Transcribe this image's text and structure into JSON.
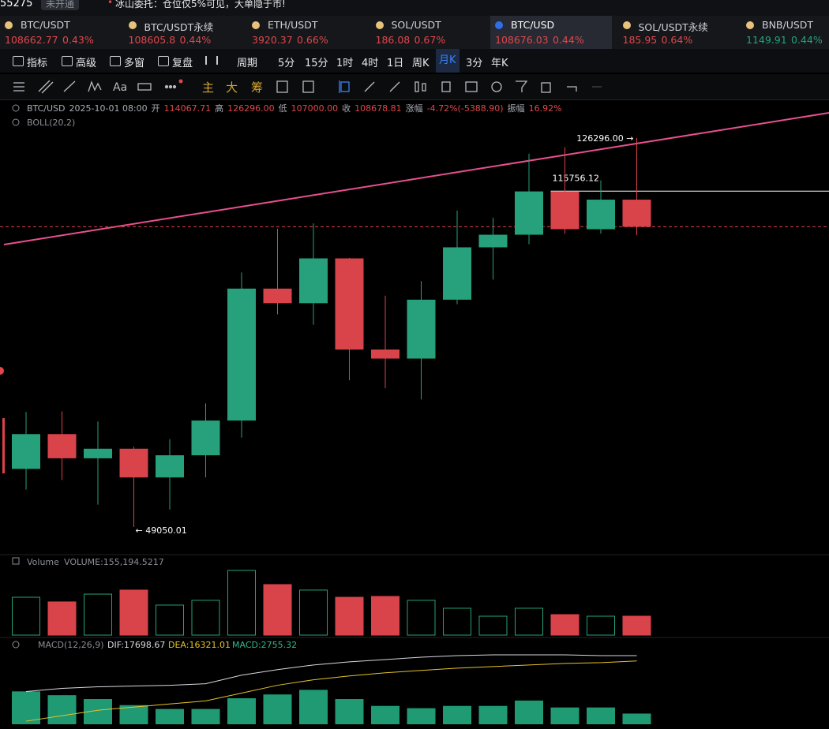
{
  "topbar": {
    "account": "55275",
    "badge": "未开通",
    "notice": "冰山委托：仓位仅5%可见，大单隐于市!"
  },
  "tickers": [
    {
      "symbol": "BTC/USDT",
      "price": "108662.77",
      "change": "0.43%",
      "color": "#e0474b",
      "active": false
    },
    {
      "symbol": "BTC/USDT永续",
      "price": "108605.8",
      "change": "0.44%",
      "color": "#e0474b",
      "active": false
    },
    {
      "symbol": "ETH/USDT",
      "price": "3920.37",
      "change": "0.66%",
      "color": "#e0474b",
      "active": false
    },
    {
      "symbol": "SOL/USDT",
      "price": "186.08",
      "change": "0.67%",
      "color": "#e0474b",
      "active": false
    },
    {
      "symbol": "BTC/USD",
      "price": "108676.03",
      "change": "0.44%",
      "color": "#e0474b",
      "active": true
    },
    {
      "symbol": "SOL/USDT永续",
      "price": "185.95",
      "change": "0.64%",
      "color": "#e0474b",
      "active": false
    },
    {
      "symbol": "BNB/USDT",
      "price": "1149.91",
      "change": "0.44%",
      "color": "#26a17b",
      "active": false
    }
  ],
  "toolbar": {
    "items": [
      "指标",
      "高级",
      "多窗",
      "复盘"
    ],
    "period": "周期",
    "intervals": [
      "5分",
      "15分",
      "1时",
      "4时",
      "1日",
      "周K",
      "月K",
      "3分",
      "年K"
    ],
    "active_interval": 6
  },
  "draw_toolbar": {
    "labels": [
      "主",
      "大",
      "筹"
    ]
  },
  "chart": {
    "info": [
      {
        "text": "BTC/USD",
        "color": "#a9abb3"
      },
      {
        "text": "2025-10-01 08:00",
        "color": "#a9abb3"
      },
      {
        "text": "开",
        "color": "#a9abb3"
      },
      {
        "text": "114067.71",
        "color": "#e0474b"
      },
      {
        "text": "高",
        "color": "#a9abb3"
      },
      {
        "text": "126296.00",
        "color": "#e0474b"
      },
      {
        "text": "低",
        "color": "#a9abb3"
      },
      {
        "text": "107000.00",
        "color": "#e0474b"
      },
      {
        "text": "收",
        "color": "#a9abb3"
      },
      {
        "text": "108678.81",
        "color": "#e0474b"
      },
      {
        "text": "涨幅",
        "color": "#a9abb3"
      },
      {
        "text": "-4.72%(-5388.90)",
        "color": "#e0474b"
      },
      {
        "text": "振幅",
        "color": "#a9abb3"
      },
      {
        "text": "16.92%",
        "color": "#e0474b"
      }
    ],
    "boll": "BOLL(20,2)",
    "up_color": "#26a17b",
    "down_color": "#d9434a",
    "candles": {
      "open": [
        60600,
        67500,
        62700,
        64600,
        58900,
        63300,
        70200,
        96400,
        93500,
        102400,
        84300,
        82500,
        94200,
        104600,
        107100,
        115700,
        108200,
        114067.71
      ],
      "high": [
        71900,
        72000,
        70000,
        65000,
        66500,
        73600,
        99600,
        108300,
        109350,
        102500,
        95000,
        97900,
        111900,
        110500,
        123200,
        124500,
        117900,
        126296
      ],
      "low": [
        56500,
        58400,
        53500,
        49050.01,
        52500,
        58900,
        66800,
        91300,
        89200,
        78200,
        76600,
        74400,
        93300,
        98200,
        105200,
        107300,
        107300,
        107000
      ],
      "close": [
        67500,
        62700,
        64600,
        58900,
        63300,
        70200,
        96400,
        93500,
        102400,
        84300,
        82500,
        94200,
        104600,
        107100,
        115700,
        108200,
        114067.71,
        108678.81
      ]
    },
    "high_label": "126296.00 →",
    "low_label": "← 49050.01",
    "level": 115756.12,
    "volume": {
      "title": "Volume",
      "label": "VOLUME:155,194.5217",
      "values": [
        310000,
        272000,
        336000,
        369000,
        246000,
        285000,
        530000,
        414000,
        369000,
        310000,
        317000,
        285000,
        220000,
        155000,
        220000,
        168000,
        155000,
        155194.5217
      ]
    },
    "macd": {
      "title": "MACD(12,26,9)",
      "dif_label": "DIF:17698.67",
      "dea_label": "DEA:16321.01",
      "macd_label": "MACD:2755.32",
      "dif_color": "#d8d8e0",
      "dea_color": "#e6c229",
      "hist_color": "#1f9a73",
      "dif": [
        8440,
        9250,
        9650,
        9850,
        10050,
        10450,
        12660,
        14070,
        15280,
        16080,
        16680,
        17290,
        17690,
        17890,
        17890,
        17890,
        17690,
        17698.67
      ],
      "dea": [
        800,
        2210,
        3620,
        4420,
        5230,
        6030,
        8040,
        10050,
        11460,
        12460,
        13270,
        13870,
        14470,
        14870,
        15280,
        15680,
        15880,
        16321.01
      ],
      "hist": [
        8470,
        7490,
        6500,
        4930,
        3940,
        3940,
        6700,
        7680,
        8870,
        6500,
        4730,
        4140,
        4730,
        4730,
        6110,
        4330,
        4330,
        2755.32
      ]
    }
  }
}
